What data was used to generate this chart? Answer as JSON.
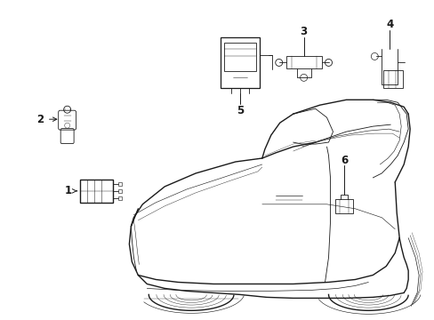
{
  "background_color": "#ffffff",
  "fig_width": 4.89,
  "fig_height": 3.6,
  "dpi": 100,
  "line_color": "#1a1a1a",
  "lw_main": 1.0,
  "lw_thin": 0.6,
  "label_fontsize": 8.5
}
